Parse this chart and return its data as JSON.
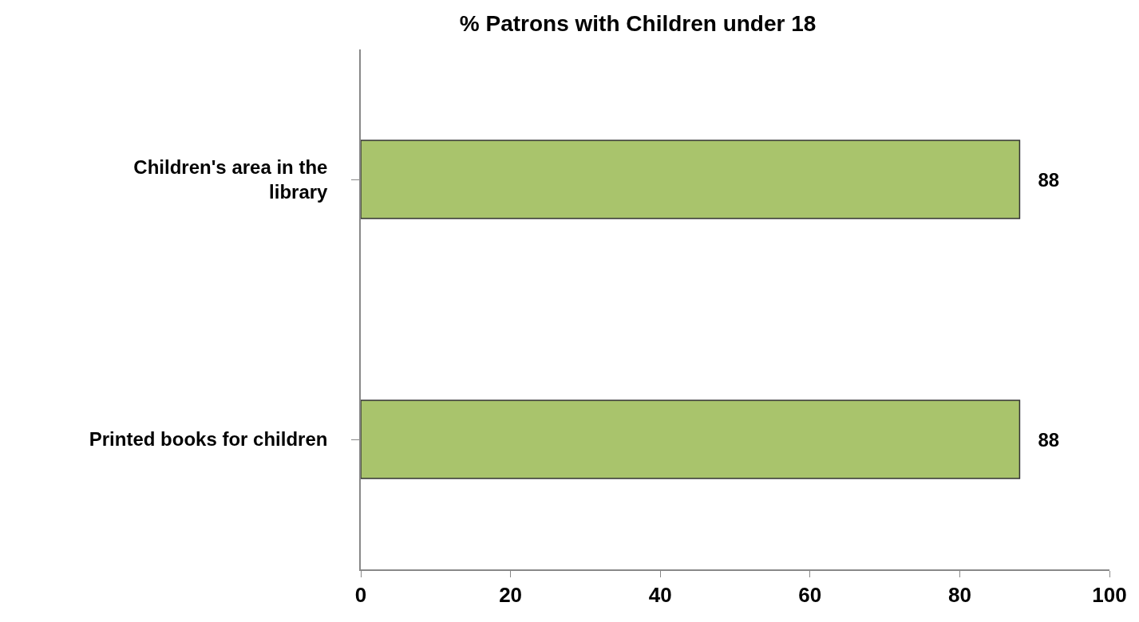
{
  "chart_data": {
    "type": "bar",
    "orientation": "horizontal",
    "title": "% Patrons with Children under 18",
    "categories": [
      "Children's area in the library",
      "Printed books for children"
    ],
    "values": [
      88,
      88
    ],
    "color": "#a9c46c",
    "xlim": [
      0,
      100
    ],
    "xticks": [
      0,
      20,
      40,
      60,
      80,
      100
    ],
    "data_labels": true
  }
}
